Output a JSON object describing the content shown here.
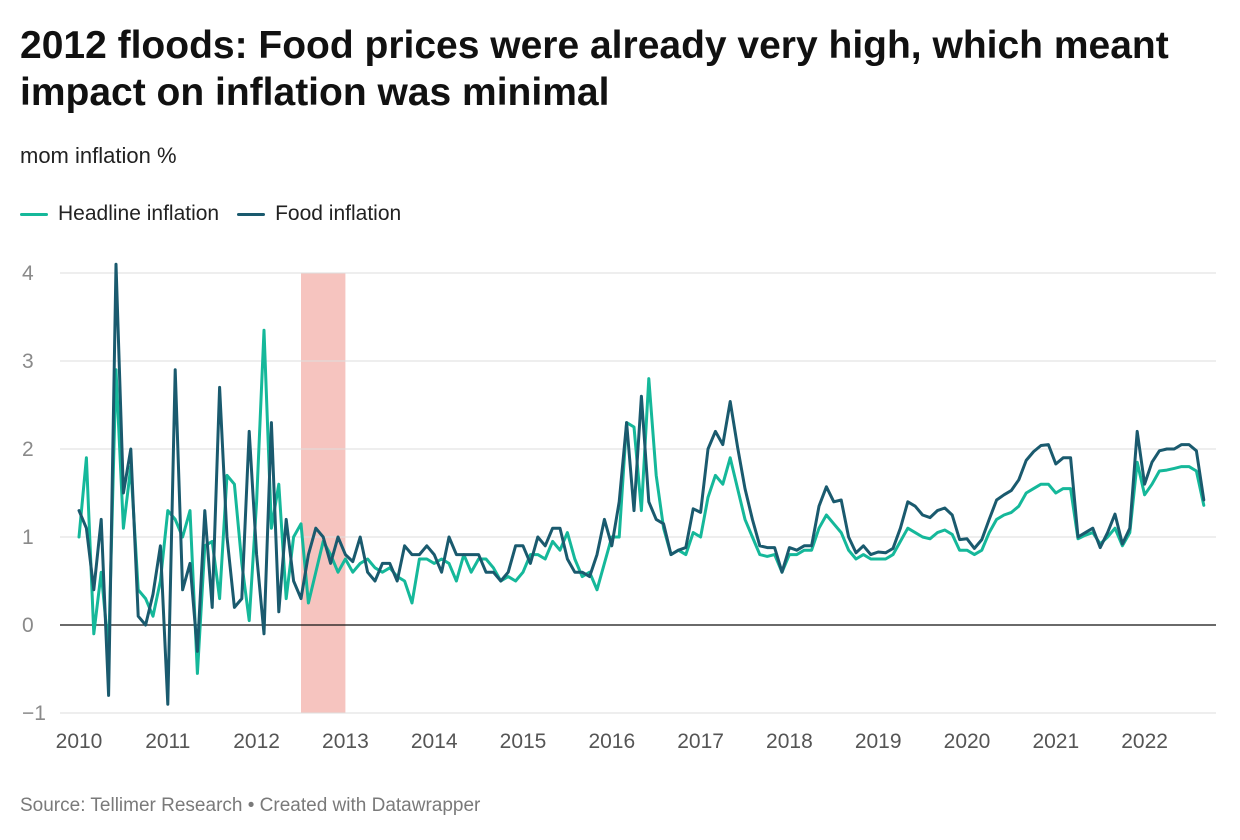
{
  "title": "2012 floods: Food prices were already very high, which meant impact on inflation was minimal",
  "subtitle": "mom inflation %",
  "legend": [
    {
      "label": "Headline inflation",
      "color": "#15b89a"
    },
    {
      "label": "Food inflation",
      "color": "#1a5a6e"
    }
  ],
  "footer": "Source: Tellimer Research • Created with Datawrapper",
  "chart_data": {
    "type": "line",
    "ylim": [
      -1,
      4
    ],
    "yticks": [
      -1,
      0,
      1,
      2,
      3,
      4
    ],
    "xlim": [
      2010,
      2022.917
    ],
    "xticks": [
      2010,
      2011,
      2012,
      2013,
      2014,
      2015,
      2016,
      2017,
      2018,
      2019,
      2020,
      2021,
      2022
    ],
    "grid": true,
    "legend_position": "top-left",
    "highlight_band": {
      "from": 2012.5,
      "to": 2013.0,
      "color": "#f6c4bf"
    },
    "x_start": 2010,
    "points_per_year": 12,
    "series": [
      {
        "name": "Headline inflation",
        "color": "#15b89a",
        "values": [
          1.0,
          1.9,
          -0.1,
          0.6,
          -0.3,
          2.9,
          1.1,
          1.8,
          0.4,
          0.3,
          0.1,
          0.5,
          1.3,
          1.2,
          1.0,
          1.3,
          -0.55,
          0.9,
          0.95,
          0.3,
          1.7,
          1.6,
          0.7,
          0.05,
          1.4,
          3.35,
          1.1,
          1.6,
          0.3,
          1.0,
          1.15,
          0.25,
          0.6,
          0.95,
          0.8,
          0.6,
          0.75,
          0.6,
          0.7,
          0.75,
          0.65,
          0.6,
          0.65,
          0.55,
          0.5,
          0.25,
          0.75,
          0.75,
          0.7,
          0.75,
          0.7,
          0.5,
          0.8,
          0.6,
          0.75,
          0.75,
          0.65,
          0.5,
          0.55,
          0.5,
          0.6,
          0.8,
          0.8,
          0.75,
          0.95,
          0.85,
          1.05,
          0.75,
          0.55,
          0.6,
          0.4,
          0.7,
          1.0,
          1.0,
          2.3,
          2.25,
          1.3,
          2.8,
          1.7,
          1.1,
          0.8,
          0.85,
          0.8,
          1.05,
          1.0,
          1.45,
          1.7,
          1.6,
          1.9,
          1.55,
          1.2,
          1.0,
          0.8,
          0.78,
          0.8,
          0.6,
          0.8,
          0.8,
          0.85,
          0.85,
          1.1,
          1.25,
          1.15,
          1.05,
          0.85,
          0.75,
          0.8,
          0.75,
          0.75,
          0.75,
          0.8,
          0.95,
          1.1,
          1.05,
          1.0,
          0.98,
          1.05,
          1.08,
          1.03,
          0.85,
          0.85,
          0.8,
          0.85,
          1.05,
          1.2,
          1.25,
          1.28,
          1.35,
          1.5,
          1.55,
          1.6,
          1.6,
          1.5,
          1.55,
          1.55,
          0.98,
          1.02,
          1.05,
          0.92,
          1.0,
          1.1,
          0.9,
          1.05,
          1.85,
          1.48,
          1.6,
          1.75,
          1.76,
          1.78,
          1.8,
          1.8,
          1.75,
          1.36
        ]
      },
      {
        "name": "Food inflation",
        "color": "#1a5a6e",
        "values": [
          1.3,
          1.1,
          0.4,
          1.2,
          -0.8,
          4.1,
          1.5,
          2.0,
          0.1,
          0.0,
          0.35,
          0.9,
          -0.9,
          2.9,
          0.4,
          0.7,
          -0.3,
          1.3,
          0.2,
          2.7,
          1.0,
          0.2,
          0.3,
          2.2,
          0.8,
          -0.1,
          2.3,
          0.15,
          1.2,
          0.5,
          0.3,
          0.8,
          1.1,
          1.0,
          0.7,
          1.0,
          0.8,
          0.72,
          1.0,
          0.6,
          0.5,
          0.7,
          0.7,
          0.5,
          0.9,
          0.8,
          0.8,
          0.9,
          0.8,
          0.6,
          1.0,
          0.8,
          0.8,
          0.8,
          0.8,
          0.6,
          0.6,
          0.5,
          0.6,
          0.9,
          0.9,
          0.7,
          1.0,
          0.9,
          1.1,
          1.1,
          0.75,
          0.6,
          0.6,
          0.55,
          0.8,
          1.2,
          0.9,
          1.4,
          2.3,
          1.3,
          2.6,
          1.4,
          1.2,
          1.15,
          0.8,
          0.85,
          0.88,
          1.32,
          1.28,
          2.0,
          2.2,
          2.05,
          2.54,
          2.02,
          1.55,
          1.2,
          0.9,
          0.88,
          0.88,
          0.6,
          0.88,
          0.85,
          0.9,
          0.9,
          1.35,
          1.57,
          1.4,
          1.42,
          1.0,
          0.82,
          0.9,
          0.8,
          0.83,
          0.82,
          0.87,
          1.1,
          1.4,
          1.35,
          1.25,
          1.22,
          1.3,
          1.33,
          1.25,
          0.97,
          0.98,
          0.87,
          0.97,
          1.2,
          1.42,
          1.48,
          1.53,
          1.65,
          1.87,
          1.97,
          2.04,
          2.05,
          1.83,
          1.9,
          1.9,
          1.0,
          1.05,
          1.1,
          0.88,
          1.05,
          1.26,
          0.92,
          1.1,
          2.2,
          1.6,
          1.85,
          1.98,
          2.0,
          2.0,
          2.05,
          2.05,
          1.98,
          1.42
        ]
      }
    ]
  }
}
